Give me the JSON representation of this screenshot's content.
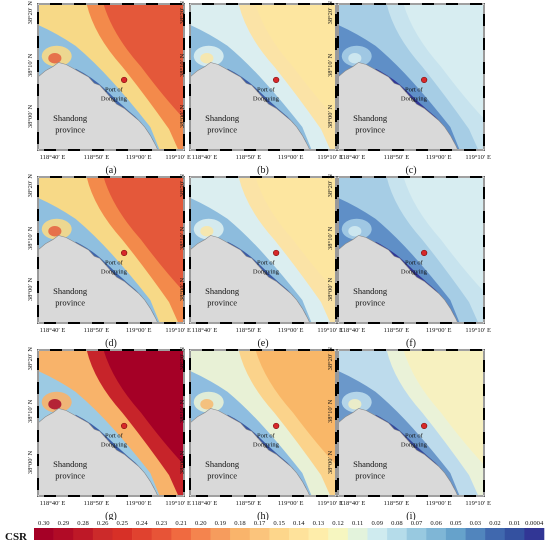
{
  "panels": [
    {
      "id": "a",
      "caption": "(a)",
      "palette": "warm-high"
    },
    {
      "id": "b",
      "caption": "(b)",
      "palette": "mid"
    },
    {
      "id": "c",
      "caption": "(c)",
      "palette": "cool"
    },
    {
      "id": "d",
      "caption": "(d)",
      "palette": "warm-high"
    },
    {
      "id": "e",
      "caption": "(e)",
      "palette": "mid"
    },
    {
      "id": "f",
      "caption": "(f)",
      "palette": "cool"
    },
    {
      "id": "g",
      "caption": "(g)",
      "palette": "warm-max"
    },
    {
      "id": "h",
      "caption": "(h)",
      "palette": "mid-warm"
    },
    {
      "id": "i",
      "caption": "(i)",
      "palette": "cool-mid"
    }
  ],
  "x_ticks": [
    "118°40′ E",
    "118°50′ E",
    "119°00′ E",
    "119°10′ E"
  ],
  "y_ticks": [
    "38°00′ N",
    "38°10′ N",
    "38°20′ N"
  ],
  "place_labels": {
    "port_line1": "Port of",
    "port_line2": "Dongying",
    "province_line1": "Shandong",
    "province_line2": "province"
  },
  "colorbar": {
    "label": "CSR",
    "ticks": [
      "0.30",
      "0.29",
      "0.28",
      "0.26",
      "0.25",
      "0.24",
      "0.23",
      "0.21",
      "0.20",
      "0.19",
      "0.18",
      "0.17",
      "0.15",
      "0.14",
      "0.13",
      "0.12",
      "0.11",
      "0.09",
      "0.08",
      "0.07",
      "0.06",
      "0.05",
      "0.03",
      "0.02",
      "0.01",
      "0.0004"
    ],
    "colors": [
      "#a50026",
      "#b10b26",
      "#be1827",
      "#cc2a2a",
      "#d73027",
      "#e0422f",
      "#e75437",
      "#f06a40",
      "#f4844e",
      "#f69c5d",
      "#f9b46b",
      "#fbc47c",
      "#fdd68b",
      "#fee29b",
      "#feedaa",
      "#f6f6c0",
      "#e3f3dc",
      "#cfebef",
      "#b5dcea",
      "#98c9e0",
      "#7fb6d6",
      "#66a2cb",
      "#5185bd",
      "#4068ae",
      "#3451a0",
      "#313695"
    ]
  }
}
